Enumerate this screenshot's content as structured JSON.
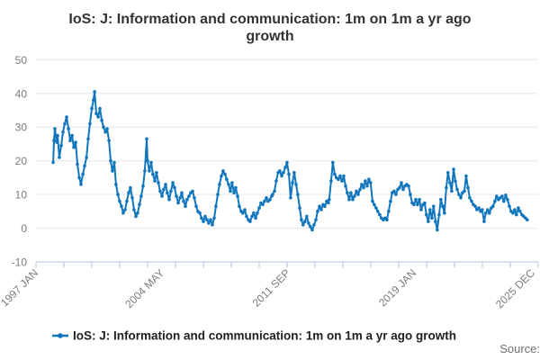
{
  "header": {
    "title_line1": "IoS: J: Information and communication: 1m on 1m a yr ago",
    "title_line2": "growth"
  },
  "legend": {
    "label": "IoS: J: Information and communication: 1m on 1m a yr ago growth"
  },
  "footer": {
    "source_label": "Source:"
  },
  "colors": {
    "series": "#1175bc",
    "grid": "#e6e6e6",
    "axis": "#c4d0e9",
    "tick_label": "#7b7b7b",
    "title": "#333333",
    "legend_text": "#1f1f1f",
    "source_text": "#6e6e6e",
    "background": "#ffffff"
  },
  "chart_data": {
    "type": "line",
    "title": "IoS: J: Information and communication: 1m on 1m a yr ago growth",
    "xlabel": "",
    "ylabel": "",
    "ylim": [
      -10,
      50
    ],
    "yticks": [
      -10,
      0,
      10,
      20,
      30,
      40,
      50
    ],
    "xlim": [
      1997.0,
      2026.25
    ],
    "x_minor_tick_count": 18,
    "x_labeled_ticks": [
      {
        "year": 1997.0,
        "label": "1997 JAN"
      },
      {
        "year": 2004.34,
        "label": "2004 MAY"
      },
      {
        "year": 2011.68,
        "label": "2011 SEP"
      },
      {
        "year": 2019.02,
        "label": "2019 JAN"
      },
      {
        "year": 2025.93,
        "label": "2025 DEC"
      }
    ],
    "grid": "horizontal",
    "legend_position": "bottom",
    "marker": "dot",
    "series": [
      {
        "name": "IoS: J: Information and communication: 1m on 1m a yr ago growth",
        "color": "#1175bc",
        "points": [
          [
            1998.0,
            19.5
          ],
          [
            1998.05,
            26
          ],
          [
            1998.1,
            29.5
          ],
          [
            1998.21,
            25.5
          ],
          [
            1998.26,
            27.5
          ],
          [
            1998.36,
            21
          ],
          [
            1998.47,
            24.5
          ],
          [
            1998.57,
            28.5
          ],
          [
            1998.68,
            31
          ],
          [
            1998.78,
            33
          ],
          [
            1998.89,
            29.5
          ],
          [
            1998.99,
            26
          ],
          [
            1999.1,
            27.5
          ],
          [
            1999.2,
            24
          ],
          [
            1999.31,
            25.5
          ],
          [
            1999.41,
            19
          ],
          [
            1999.52,
            15
          ],
          [
            1999.62,
            13
          ],
          [
            1999.73,
            16
          ],
          [
            1999.83,
            18.5
          ],
          [
            1999.94,
            21
          ],
          [
            2000.04,
            26.5
          ],
          [
            2000.14,
            31
          ],
          [
            2000.25,
            35.5
          ],
          [
            2000.35,
            38
          ],
          [
            2000.41,
            40.5
          ],
          [
            2000.51,
            34
          ],
          [
            2000.62,
            33
          ],
          [
            2000.72,
            35.5
          ],
          [
            2000.83,
            32
          ],
          [
            2000.93,
            30
          ],
          [
            2001.04,
            28.5
          ],
          [
            2001.14,
            29.5
          ],
          [
            2001.25,
            26
          ],
          [
            2001.35,
            20
          ],
          [
            2001.45,
            17
          ],
          [
            2001.56,
            19.5
          ],
          [
            2001.66,
            13
          ],
          [
            2001.77,
            10
          ],
          [
            2001.87,
            8
          ],
          [
            2001.98,
            6.5
          ],
          [
            2002.08,
            4.5
          ],
          [
            2002.19,
            5.5
          ],
          [
            2002.29,
            8
          ],
          [
            2002.4,
            10.5
          ],
          [
            2002.5,
            12
          ],
          [
            2002.61,
            9
          ],
          [
            2002.71,
            5.5
          ],
          [
            2002.82,
            3.5
          ],
          [
            2002.92,
            4.5
          ],
          [
            2003.03,
            7
          ],
          [
            2003.13,
            9.5
          ],
          [
            2003.24,
            12.5
          ],
          [
            2003.34,
            17
          ],
          [
            2003.45,
            26.5
          ],
          [
            2003.5,
            20
          ],
          [
            2003.6,
            17
          ],
          [
            2003.71,
            19.5
          ],
          [
            2003.81,
            16
          ],
          [
            2003.92,
            14
          ],
          [
            2004.02,
            16.5
          ],
          [
            2004.13,
            13.5
          ],
          [
            2004.23,
            11
          ],
          [
            2004.34,
            9.5
          ],
          [
            2004.44,
            11.5
          ],
          [
            2004.55,
            13
          ],
          [
            2004.65,
            10.5
          ],
          [
            2004.76,
            8.5
          ],
          [
            2004.86,
            11
          ],
          [
            2004.97,
            13.5
          ],
          [
            2005.07,
            12
          ],
          [
            2005.18,
            9.5
          ],
          [
            2005.28,
            7.5
          ],
          [
            2005.39,
            9
          ],
          [
            2005.49,
            10.5
          ],
          [
            2005.6,
            8
          ],
          [
            2005.7,
            6.5
          ],
          [
            2005.8,
            8.5
          ],
          [
            2005.91,
            9.5
          ],
          [
            2006.01,
            10.5
          ],
          [
            2006.12,
            11
          ],
          [
            2006.22,
            9
          ],
          [
            2006.33,
            6.5
          ],
          [
            2006.43,
            5
          ],
          [
            2006.54,
            4.5
          ],
          [
            2006.64,
            3
          ],
          [
            2006.75,
            2
          ],
          [
            2006.85,
            3.5
          ],
          [
            2006.96,
            2.5
          ],
          [
            2007.06,
            1.5
          ],
          [
            2007.17,
            2.5
          ],
          [
            2007.27,
            1
          ],
          [
            2007.38,
            3
          ],
          [
            2007.48,
            6.5
          ],
          [
            2007.59,
            10
          ],
          [
            2007.69,
            13
          ],
          [
            2007.8,
            15.5
          ],
          [
            2007.9,
            17
          ],
          [
            2008.01,
            16
          ],
          [
            2008.11,
            14.5
          ],
          [
            2008.22,
            13
          ],
          [
            2008.32,
            11
          ],
          [
            2008.42,
            13.5
          ],
          [
            2008.53,
            10.5
          ],
          [
            2008.63,
            12
          ],
          [
            2008.74,
            9.5
          ],
          [
            2008.84,
            6.5
          ],
          [
            2008.95,
            5
          ],
          [
            2009.05,
            4.5
          ],
          [
            2009.16,
            5.5
          ],
          [
            2009.26,
            3.5
          ],
          [
            2009.37,
            2.5
          ],
          [
            2009.47,
            2
          ],
          [
            2009.58,
            3.5
          ],
          [
            2009.68,
            4.5
          ],
          [
            2009.79,
            3
          ],
          [
            2009.89,
            4.5
          ],
          [
            2010.0,
            6
          ],
          [
            2010.1,
            7.5
          ],
          [
            2010.21,
            7
          ],
          [
            2010.31,
            8
          ],
          [
            2010.42,
            9
          ],
          [
            2010.52,
            8
          ],
          [
            2010.63,
            8.5
          ],
          [
            2010.73,
            9.5
          ],
          [
            2010.78,
            10
          ],
          [
            2010.89,
            11
          ],
          [
            2010.99,
            14
          ],
          [
            2011.1,
            16.5
          ],
          [
            2011.2,
            17
          ],
          [
            2011.31,
            15.5
          ],
          [
            2011.41,
            16.5
          ],
          [
            2011.52,
            18
          ],
          [
            2011.62,
            19.5
          ],
          [
            2011.73,
            16
          ],
          [
            2011.83,
            9
          ],
          [
            2011.94,
            13.5
          ],
          [
            2012.04,
            16.5
          ],
          [
            2012.15,
            13
          ],
          [
            2012.25,
            10
          ],
          [
            2012.36,
            6
          ],
          [
            2012.46,
            2.5
          ],
          [
            2012.56,
            1
          ],
          [
            2012.67,
            2
          ],
          [
            2012.77,
            3.5
          ],
          [
            2012.88,
            1.5
          ],
          [
            2012.98,
            0.5
          ],
          [
            2013.09,
            -0.5
          ],
          [
            2013.19,
            1
          ],
          [
            2013.3,
            2.5
          ],
          [
            2013.4,
            5
          ],
          [
            2013.51,
            6.5
          ],
          [
            2013.61,
            5.5
          ],
          [
            2013.72,
            7
          ],
          [
            2013.82,
            6.5
          ],
          [
            2013.93,
            8
          ],
          [
            2014.03,
            7.5
          ],
          [
            2014.08,
            8.5
          ],
          [
            2014.19,
            14
          ],
          [
            2014.29,
            19.5
          ],
          [
            2014.4,
            16
          ],
          [
            2014.5,
            15
          ],
          [
            2014.61,
            14.5
          ],
          [
            2014.71,
            15.5
          ],
          [
            2014.82,
            14
          ],
          [
            2014.92,
            15.5
          ],
          [
            2015.03,
            12.5
          ],
          [
            2015.13,
            10.5
          ],
          [
            2015.24,
            8.5
          ],
          [
            2015.34,
            10.5
          ],
          [
            2015.45,
            8.5
          ],
          [
            2015.55,
            9.5
          ],
          [
            2015.66,
            11
          ],
          [
            2015.76,
            10
          ],
          [
            2015.87,
            11.5
          ],
          [
            2015.97,
            13
          ],
          [
            2016.08,
            12
          ],
          [
            2016.18,
            14
          ],
          [
            2016.29,
            12.5
          ],
          [
            2016.39,
            14.5
          ],
          [
            2016.49,
            13.5
          ],
          [
            2016.6,
            8
          ],
          [
            2016.7,
            7
          ],
          [
            2016.81,
            6
          ],
          [
            2016.91,
            5
          ],
          [
            2017.02,
            4
          ],
          [
            2017.12,
            3
          ],
          [
            2017.23,
            2.5
          ],
          [
            2017.33,
            3
          ],
          [
            2017.44,
            2.5
          ],
          [
            2017.54,
            5
          ],
          [
            2017.65,
            8
          ],
          [
            2017.75,
            10.5
          ],
          [
            2017.86,
            11
          ],
          [
            2017.96,
            10
          ],
          [
            2018.07,
            11.5
          ],
          [
            2018.17,
            12
          ],
          [
            2018.28,
            13.5
          ],
          [
            2018.38,
            11.5
          ],
          [
            2018.49,
            12.5
          ],
          [
            2018.59,
            13
          ],
          [
            2018.7,
            12.5
          ],
          [
            2018.8,
            10
          ],
          [
            2018.91,
            7.5
          ],
          [
            2019.01,
            7
          ],
          [
            2019.12,
            8.5
          ],
          [
            2019.22,
            7
          ],
          [
            2019.33,
            8.5
          ],
          [
            2019.43,
            5.5
          ],
          [
            2019.54,
            7
          ],
          [
            2019.64,
            7.5
          ],
          [
            2019.74,
            4
          ],
          [
            2019.85,
            2
          ],
          [
            2019.95,
            5.5
          ],
          [
            2020.06,
            3
          ],
          [
            2020.16,
            6.5
          ],
          [
            2020.27,
            2
          ],
          [
            2020.37,
            -0.5
          ],
          [
            2020.48,
            4
          ],
          [
            2020.58,
            8.5
          ],
          [
            2020.69,
            6.5
          ],
          [
            2020.79,
            4.5
          ],
          [
            2020.9,
            12
          ],
          [
            2021.0,
            16.5
          ],
          [
            2021.11,
            13.5
          ],
          [
            2021.21,
            11
          ],
          [
            2021.32,
            17.5
          ],
          [
            2021.42,
            14
          ],
          [
            2021.53,
            11.5
          ],
          [
            2021.63,
            10
          ],
          [
            2021.74,
            9
          ],
          [
            2021.84,
            10.5
          ],
          [
            2021.95,
            11
          ],
          [
            2022.05,
            15.5
          ],
          [
            2022.16,
            12
          ],
          [
            2022.26,
            9
          ],
          [
            2022.37,
            8
          ],
          [
            2022.47,
            7
          ],
          [
            2022.58,
            6.5
          ],
          [
            2022.68,
            5.5
          ],
          [
            2022.79,
            6
          ],
          [
            2022.89,
            5
          ],
          [
            2022.99,
            5.5
          ],
          [
            2023.1,
            2
          ],
          [
            2023.2,
            4.5
          ],
          [
            2023.31,
            5.5
          ],
          [
            2023.41,
            4.5
          ],
          [
            2023.52,
            6
          ],
          [
            2023.62,
            6.5
          ],
          [
            2023.73,
            8
          ],
          [
            2023.83,
            9.5
          ],
          [
            2023.94,
            8.5
          ],
          [
            2024.04,
            9
          ],
          [
            2024.15,
            9.5
          ],
          [
            2024.25,
            8
          ],
          [
            2024.36,
            9.8
          ],
          [
            2024.46,
            8.5
          ],
          [
            2024.57,
            6.5
          ],
          [
            2024.67,
            5
          ],
          [
            2024.78,
            4.5
          ],
          [
            2024.88,
            5.5
          ],
          [
            2024.98,
            4
          ],
          [
            2025.09,
            6
          ],
          [
            2025.19,
            5
          ],
          [
            2025.3,
            4
          ],
          [
            2025.4,
            3.5
          ],
          [
            2025.51,
            3
          ],
          [
            2025.61,
            2.5
          ]
        ]
      }
    ]
  }
}
